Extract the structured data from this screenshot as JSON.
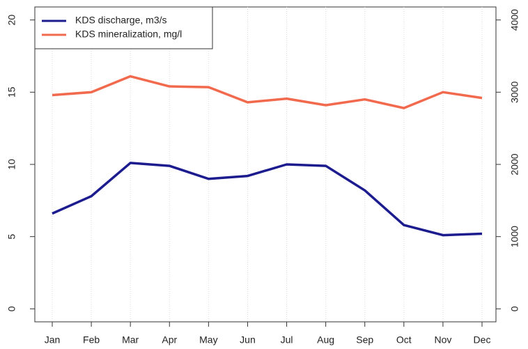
{
  "chart_data": {
    "type": "line",
    "categories": [
      "Jan",
      "Feb",
      "Mar",
      "Apr",
      "May",
      "Jun",
      "Jul",
      "Aug",
      "Sep",
      "Oct",
      "Nov",
      "Dec"
    ],
    "series": [
      {
        "name": "KDS discharge, m3/s",
        "color": "#1c1c8f",
        "values": [
          6.6,
          7.8,
          10.1,
          9.9,
          9.0,
          9.2,
          10.0,
          9.9,
          8.2,
          5.8,
          5.1,
          5.2
        ]
      },
      {
        "name": "KDS mineralization, mg/l",
        "color": "#f26a4e",
        "axis": "y2",
        "values": [
          2960,
          3000,
          3220,
          3080,
          3070,
          2860,
          2910,
          2820,
          2900,
          2780,
          3000,
          2920
        ]
      }
    ],
    "ylim": [
      -0.9,
      20.9
    ],
    "yticks": [
      0,
      5,
      10,
      15,
      20
    ],
    "y2lim": [
      -180,
      4180
    ],
    "y2ticks": [
      0,
      1000,
      2000,
      3000,
      4000
    ],
    "grid": true,
    "legend": "top-left"
  }
}
